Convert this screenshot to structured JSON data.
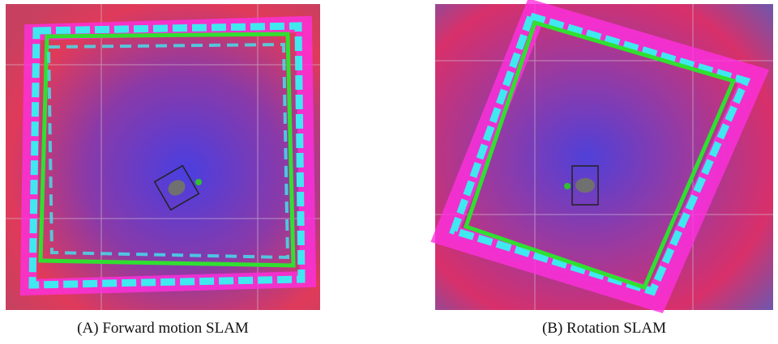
{
  "figures": [
    {
      "label": "(A)",
      "caption": "Forward motion SLAM"
    },
    {
      "label": "(B)",
      "caption": "Rotation SLAM"
    }
  ]
}
